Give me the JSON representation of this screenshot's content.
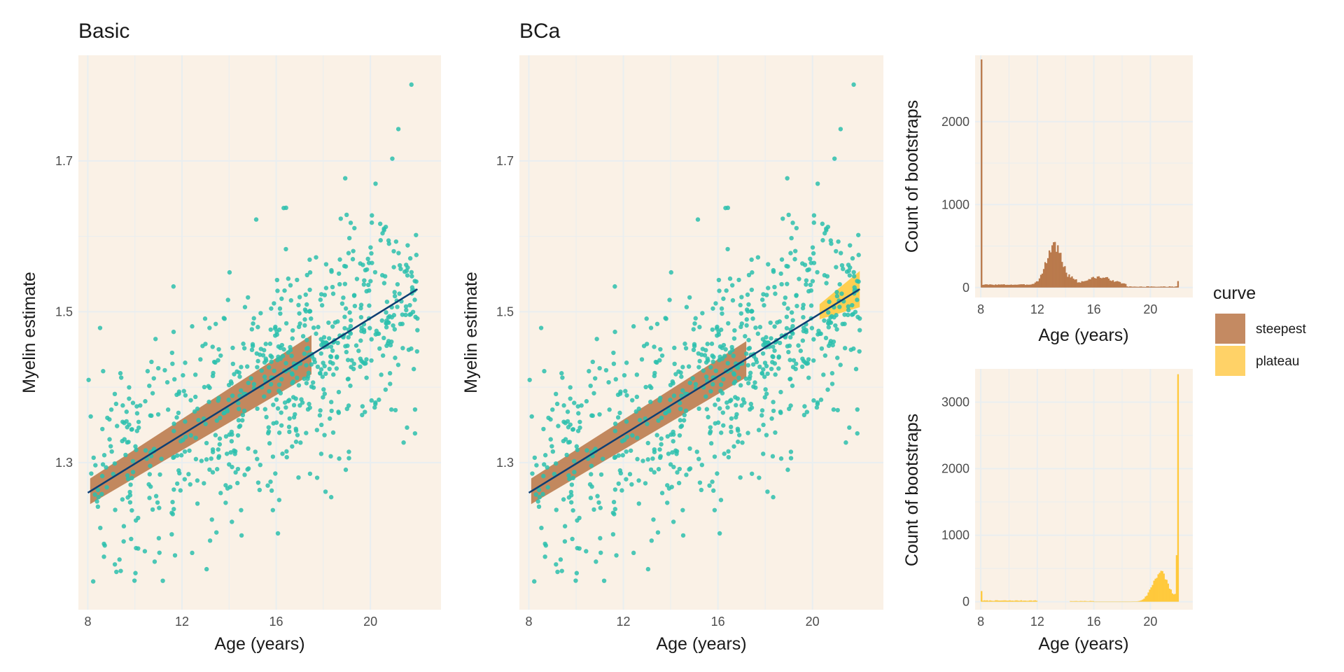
{
  "colors": {
    "panel_bg": "#faf1e6",
    "grid": "#e9eef0",
    "points": "#2cbfad",
    "fit_line": "#0e3f73",
    "steepest": "#b9794b",
    "plateau": "#ffc93c"
  },
  "legend": {
    "title": "curve",
    "items": [
      {
        "label": "steepest",
        "color": "#c48a62"
      },
      {
        "label": "plateau",
        "color": "#ffd267"
      }
    ]
  },
  "chart_data": [
    {
      "id": "basic",
      "type": "scatter",
      "title": "Basic",
      "xlabel": "Age (years)",
      "ylabel": "Myelin estimate",
      "xlim": [
        7.6,
        23.0
      ],
      "ylim": [
        1.105,
        1.84
      ],
      "xticks": [
        8,
        12,
        16,
        20
      ],
      "yticks": [
        1.3,
        1.5,
        1.7
      ],
      "n_points": 760,
      "point_seed": 11,
      "fit_line": {
        "x": [
          8,
          22
        ],
        "y": [
          1.26,
          1.53
        ]
      },
      "bands": [
        {
          "curve": "steepest",
          "x": [
            8.1,
            17.5
          ],
          "y_center": [
            1.262,
            1.443
          ],
          "half_width": [
            0.017,
            0.026
          ]
        }
      ]
    },
    {
      "id": "bca",
      "type": "scatter",
      "title": "BCa",
      "xlabel": "Age (years)",
      "ylabel": "Myelin estimate",
      "xlim": [
        7.6,
        23.0
      ],
      "ylim": [
        1.105,
        1.84
      ],
      "xticks": [
        8,
        12,
        16,
        20
      ],
      "yticks": [
        1.3,
        1.5,
        1.7
      ],
      "n_points": 760,
      "point_seed": 11,
      "fit_line": {
        "x": [
          8,
          22
        ],
        "y": [
          1.26,
          1.53
        ]
      },
      "bands": [
        {
          "curve": "steepest",
          "x": [
            8.1,
            17.2
          ],
          "y_center": [
            1.262,
            1.437
          ],
          "half_width": [
            0.017,
            0.024
          ]
        },
        {
          "curve": "plateau",
          "x": [
            20.3,
            22.0
          ],
          "y_center": [
            1.5,
            1.53
          ],
          "half_width": [
            0.01,
            0.024
          ]
        }
      ]
    },
    {
      "id": "hist_steepest",
      "type": "bar",
      "curve": "steepest",
      "xlabel": "Age (years)",
      "ylabel": "Count of bootstraps",
      "xlim": [
        7.6,
        23.0
      ],
      "ylim": [
        -120,
        2800
      ],
      "xticks": [
        8,
        12,
        16,
        20
      ],
      "yticks": [
        0,
        1000,
        2000
      ],
      "x_range": [
        8,
        22
      ],
      "bins": 140,
      "peaks": [
        {
          "x": 8.0,
          "value": 2750
        },
        {
          "x": 13.2,
          "value": 540
        },
        {
          "x": 16.3,
          "value": 110
        },
        {
          "x": 22.0,
          "value": 80
        }
      ]
    },
    {
      "id": "hist_plateau",
      "type": "bar",
      "curve": "plateau",
      "xlabel": "Age (years)",
      "ylabel": "Count of bootstraps",
      "xlim": [
        7.6,
        23.0
      ],
      "ylim": [
        -120,
        3500
      ],
      "xticks": [
        8,
        12,
        16,
        20
      ],
      "yticks": [
        0,
        1000,
        2000,
        3000
      ],
      "x_range": [
        8,
        22
      ],
      "bins": 140,
      "peaks": [
        {
          "x": 8.0,
          "value": 160
        },
        {
          "x": 20.7,
          "value": 470
        },
        {
          "x": 21.9,
          "value": 3420
        }
      ]
    }
  ]
}
